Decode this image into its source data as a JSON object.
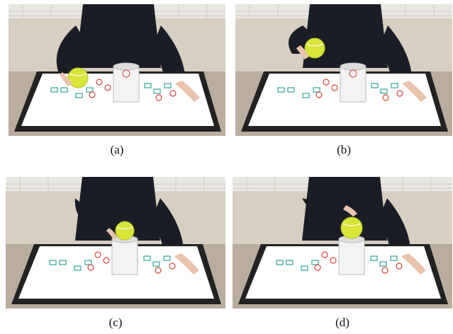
{
  "colors": {
    "wall": "#e9e7e2",
    "net": "#c9c5bd",
    "floor": "#b9ad9d",
    "suit": "#1b1d26",
    "table_top": "#ffffff",
    "table_edge": "#222222",
    "ball": "#d8e63a",
    "can": "#f3f3f3",
    "marker_teal": "#2fa59a",
    "marker_red": "#d6443c"
  },
  "panels": [
    {
      "id": "a",
      "caption": "(a)",
      "phase": "grasp-ball-on-table"
    },
    {
      "id": "b",
      "caption": "(b)",
      "phase": "lift-ball"
    },
    {
      "id": "c",
      "caption": "(c)",
      "phase": "move-ball-over-can"
    },
    {
      "id": "d",
      "caption": "(d)",
      "phase": "place-ball-on-can"
    }
  ]
}
